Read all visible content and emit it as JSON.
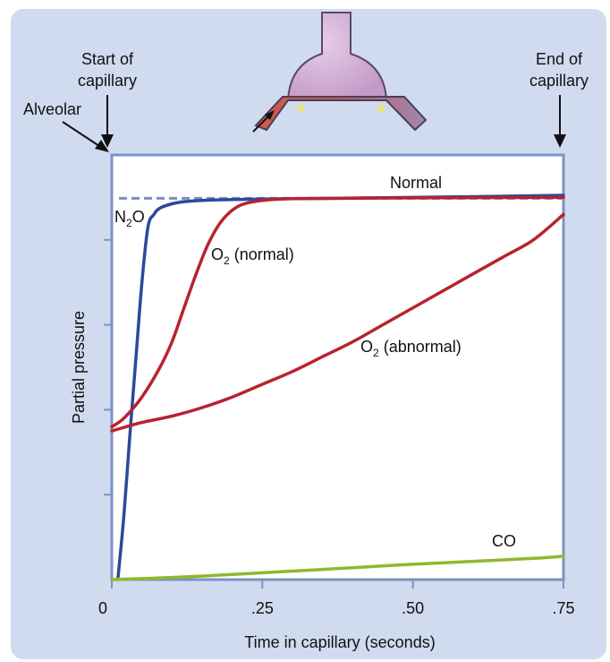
{
  "chart_data": {
    "type": "line",
    "xlabel": "Time in capillary (seconds)",
    "ylabel": "Partial pressure",
    "xlim": [
      0,
      0.75
    ],
    "ylim": [
      0,
      1
    ],
    "x_ticks": [
      0,
      0.25,
      0.5,
      0.75
    ],
    "x_tick_labels": [
      "0",
      ".25",
      ".50",
      ".75"
    ],
    "y_ticks": [
      0.2,
      0.4,
      0.6,
      0.8
    ],
    "grid": false,
    "alveolar_level": 0.9,
    "alveolar_label": "Alveolar",
    "start_label_line1": "Start of",
    "start_label_line2": "capillary",
    "end_label_line1": "End of",
    "end_label_line2": "capillary",
    "normal_label": "Normal",
    "series": [
      {
        "name": "N2O",
        "label_main": "N",
        "label_sub": "2",
        "label_tail": "O",
        "color": "#2b4a9c",
        "x": [
          0.01,
          0.02,
          0.03,
          0.04,
          0.05,
          0.06,
          0.07,
          0.08,
          0.1,
          0.12,
          0.15,
          0.2,
          0.3,
          0.5,
          0.75
        ],
        "y": [
          0.0,
          0.15,
          0.34,
          0.52,
          0.7,
          0.83,
          0.86,
          0.875,
          0.885,
          0.89,
          0.893,
          0.895,
          0.897,
          0.9,
          0.905
        ]
      },
      {
        "name": "O2 (normal)",
        "label_main": "O",
        "label_sub": "2",
        "label_tail": " (normal)",
        "color": "#b8232f",
        "x": [
          0,
          0.02,
          0.05,
          0.08,
          0.1,
          0.12,
          0.14,
          0.16,
          0.18,
          0.2,
          0.22,
          0.25,
          0.3,
          0.4,
          0.5,
          0.75
        ],
        "y": [
          0.36,
          0.38,
          0.43,
          0.5,
          0.56,
          0.64,
          0.72,
          0.79,
          0.84,
          0.87,
          0.885,
          0.893,
          0.897,
          0.898,
          0.899,
          0.9
        ]
      },
      {
        "name": "O2 (abnormal)",
        "label_main": "O",
        "label_sub": "2",
        "label_tail": " (abnormal)",
        "color": "#b8232f",
        "x": [
          0,
          0.05,
          0.1,
          0.15,
          0.2,
          0.25,
          0.3,
          0.35,
          0.4,
          0.45,
          0.5,
          0.55,
          0.6,
          0.65,
          0.7,
          0.75
        ],
        "y": [
          0.35,
          0.37,
          0.385,
          0.405,
          0.43,
          0.46,
          0.49,
          0.525,
          0.56,
          0.6,
          0.64,
          0.68,
          0.72,
          0.76,
          0.8,
          0.86
        ]
      },
      {
        "name": "CO",
        "label_main": "CO",
        "label_sub": "",
        "label_tail": "",
        "color": "#8fb82e",
        "x": [
          0,
          0.1,
          0.2,
          0.3,
          0.4,
          0.5,
          0.6,
          0.7,
          0.75
        ],
        "y": [
          0.0,
          0.005,
          0.012,
          0.02,
          0.028,
          0.036,
          0.043,
          0.05,
          0.055
        ]
      }
    ]
  },
  "colors": {
    "panel_background": "#d0dbef",
    "axis_frame": "#7a93c6",
    "alveolar_dash": "#7a8ec9",
    "capillary_fill": "#9e87b0",
    "alveolus_fill": "#d7b5d8",
    "capillary_red": "#d05a4a"
  }
}
